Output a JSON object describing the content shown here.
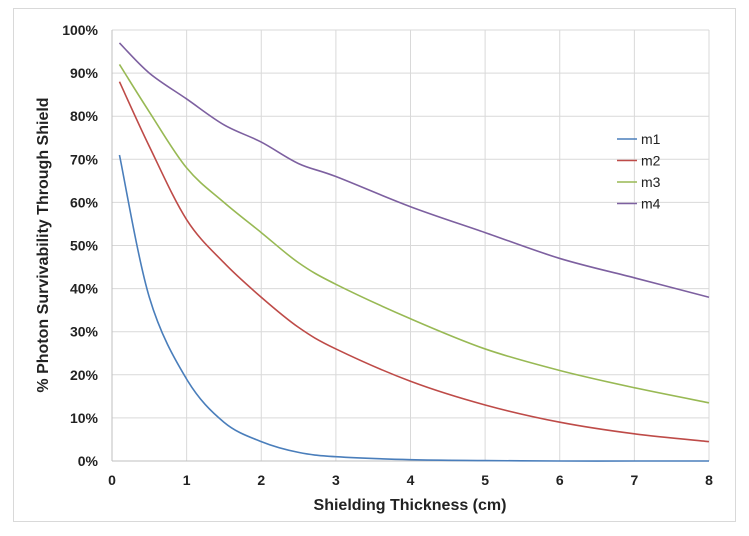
{
  "chart_data": {
    "type": "line",
    "title": "",
    "xlabel": "Shielding Thickness (cm)",
    "ylabel": "% Photon Survivability Through Shield",
    "xlim": [
      0,
      8
    ],
    "ylim": [
      0,
      100
    ],
    "x_ticks": [
      "0",
      "1",
      "2",
      "3",
      "4",
      "5",
      "6",
      "7",
      "8"
    ],
    "y_ticks": [
      "0%",
      "10%",
      "20%",
      "30%",
      "40%",
      "50%",
      "60%",
      "70%",
      "80%",
      "90%",
      "100%"
    ],
    "grid": true,
    "legend_position": "right",
    "series": [
      {
        "name": "m1",
        "color": "#4a7ebb",
        "x": [
          0.1,
          0.5,
          1,
          1.5,
          2,
          2.5,
          3,
          4,
          5,
          6,
          7,
          8
        ],
        "y": [
          71,
          38,
          19,
          9,
          4.5,
          2,
          1,
          0.3,
          0.1,
          0,
          0,
          0
        ]
      },
      {
        "name": "m2",
        "color": "#be4b48",
        "x": [
          0.1,
          0.5,
          1,
          1.5,
          2,
          2.5,
          3,
          4,
          5,
          6,
          7,
          8
        ],
        "y": [
          88,
          73,
          56,
          46,
          38,
          31,
          26,
          18.5,
          13,
          9,
          6.3,
          4.5
        ]
      },
      {
        "name": "m3",
        "color": "#98b954",
        "x": [
          0.1,
          0.5,
          1,
          1.5,
          2,
          2.5,
          3,
          4,
          5,
          6,
          7,
          8
        ],
        "y": [
          92,
          81,
          68,
          60,
          53,
          46,
          41,
          33,
          26,
          21,
          17,
          13.5
        ]
      },
      {
        "name": "m4",
        "color": "#7d60a0",
        "x": [
          0.1,
          0.5,
          1,
          1.5,
          2,
          2.5,
          3,
          4,
          5,
          6,
          7,
          8
        ],
        "y": [
          97,
          90,
          84,
          78,
          74,
          69,
          66,
          59,
          53,
          47,
          42.5,
          38
        ]
      }
    ]
  }
}
